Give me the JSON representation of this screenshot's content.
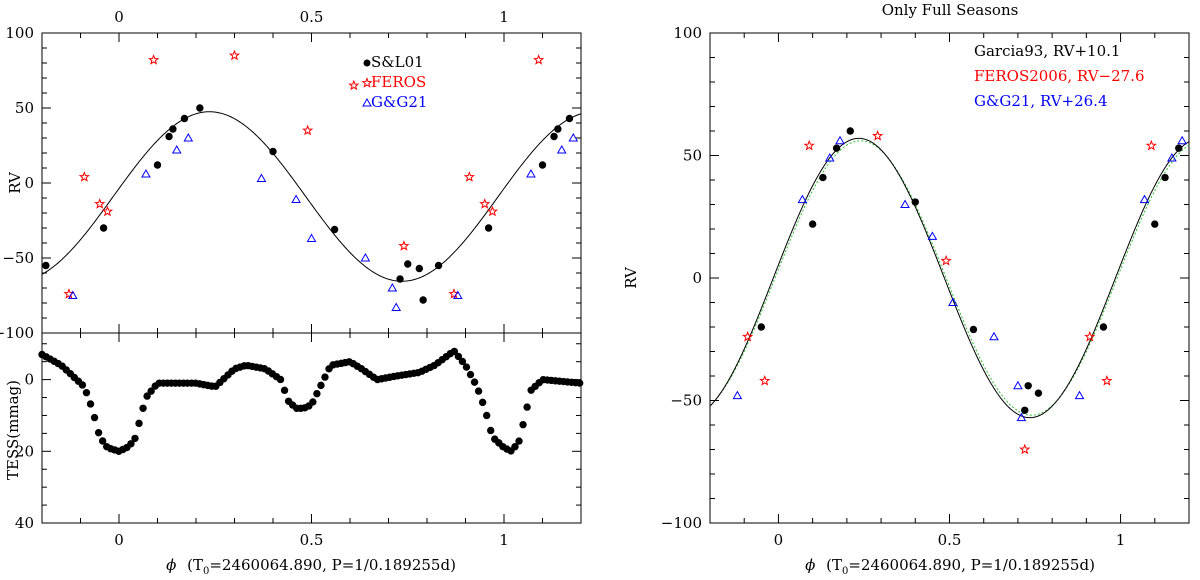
{
  "chart_data": [
    {
      "type": "scatter",
      "panel": "left-top",
      "ylabel": "RV",
      "top_xticks": [
        "0",
        "0.5",
        "1"
      ],
      "xlim": [
        -0.2,
        1.2
      ],
      "ylim": [
        -100,
        100
      ],
      "yticks": [
        100,
        50,
        0,
        -50,
        -100
      ],
      "ytick_labels": [
        "100",
        "50",
        "0",
        "−50",
        "−100"
      ],
      "legend_position": "top-right",
      "legend": [
        {
          "label": "S&L01",
          "color": "#000000",
          "marker": "dot"
        },
        {
          "label": "FEROS",
          "color": "#ff0000",
          "marker": "star"
        },
        {
          "label": "G&G21",
          "color": "#0000ff",
          "marker": "triangle"
        }
      ],
      "fit": {
        "mean": -9,
        "amplitude": 56.5,
        "phase_of_max": 0.235
      },
      "series": [
        {
          "name": "S&L01",
          "color": "#000000",
          "marker": "dot",
          "x": [
            -0.19,
            -0.04,
            0.1,
            0.13,
            0.14,
            0.17,
            0.21,
            0.4,
            0.56,
            0.73,
            0.75,
            0.78,
            0.79,
            0.83,
            0.96,
            1.1,
            1.13,
            1.14,
            1.17
          ],
          "y": [
            -55,
            -30,
            12,
            31,
            36,
            43,
            50,
            21,
            -31,
            -64,
            -54,
            -57,
            -78,
            -55,
            -30,
            12,
            31,
            36,
            43
          ]
        },
        {
          "name": "FEROS",
          "color": "#ff0000",
          "marker": "star",
          "x": [
            -0.13,
            -0.09,
            -0.05,
            -0.03,
            0.09,
            0.3,
            0.49,
            0.61,
            0.74,
            0.87,
            0.91,
            0.95,
            0.97,
            1.09
          ],
          "y": [
            -74,
            4,
            -14,
            -19,
            82,
            85,
            35,
            65,
            -42,
            -74,
            4,
            -14,
            -19,
            82
          ]
        },
        {
          "name": "G&G21",
          "color": "#0000ff",
          "marker": "triangle",
          "x": [
            -0.12,
            0.07,
            0.15,
            0.18,
            0.37,
            0.46,
            0.5,
            0.64,
            0.71,
            0.72,
            0.88,
            1.07,
            1.15,
            1.18
          ],
          "y": [
            -75,
            6,
            22,
            30,
            3,
            -11,
            -37,
            -50,
            -70,
            -83,
            -75,
            6,
            22,
            30
          ]
        }
      ]
    },
    {
      "type": "scatter",
      "panel": "left-bottom",
      "ylabel": "TESS(mmag)",
      "xlabel_prefix": "ϕ",
      "xlabel_main": "(T",
      "xlabel_sub": "0",
      "xlabel_rest": "=2460064.890, P=1/0.189255d)",
      "xlim": [
        -0.2,
        1.2
      ],
      "xticks": [
        "0",
        "0.5",
        "1"
      ],
      "ylim": [
        -13,
        40
      ],
      "yticks": [
        0,
        20,
        40
      ],
      "ytick_labels": [
        "0",
        "20",
        "40"
      ],
      "series": [
        {
          "name": "TESS",
          "color": "#000000",
          "marker": "dot",
          "phase_values_x": [
            -0.2,
            -0.15,
            -0.12,
            -0.09,
            -0.07,
            -0.05,
            -0.03,
            0,
            0.02,
            0.04,
            0.07,
            0.1,
            0.2,
            0.25,
            0.3,
            0.33,
            0.38,
            0.42,
            0.44,
            0.46,
            0.48,
            0.5,
            0.55,
            0.6,
            0.63,
            0.67,
            0.72,
            0.78,
            0.82,
            0.87,
            0.9,
            0.93,
            0.95,
            0.97,
            1,
            1.02,
            1.04,
            1.07,
            1.1,
            1.2
          ],
          "phase_values_y": [
            -7,
            -4,
            -1,
            2,
            8,
            16,
            19,
            20,
            19,
            17,
            5,
            1,
            1,
            2,
            -3,
            -4,
            -3,
            0,
            6,
            8,
            8,
            7,
            -4,
            -5,
            -3,
            0,
            -1,
            -2,
            -4,
            -8,
            -4,
            2,
            8,
            16,
            19,
            20,
            17,
            3,
            0,
            1
          ]
        }
      ]
    },
    {
      "type": "scatter",
      "panel": "right",
      "title": "Only Full Seasons",
      "ylabel": "RV",
      "xlabel_prefix": "ϕ",
      "xlabel_main": "(T",
      "xlabel_sub": "0",
      "xlabel_rest": "=2460064.890, P=1/0.189255d)",
      "xlim": [
        -0.2,
        1.2
      ],
      "xticks": [
        "0",
        "0.5",
        "1"
      ],
      "ylim": [
        -100,
        100
      ],
      "yticks": [
        100,
        50,
        0,
        -50,
        -100
      ],
      "ytick_labels": [
        "100",
        "50",
        "0",
        "−50",
        "−100"
      ],
      "legend_position": "top-right",
      "legend": [
        {
          "label": "Garcia93, RV+10.1",
          "color": "#000000"
        },
        {
          "label": "FEROS2006, RV−27.6",
          "color": "#ff0000"
        },
        {
          "label": "G&G21, RV+26.4",
          "color": "#0000ff"
        }
      ],
      "fit": {
        "mean": 0,
        "amplitude": 57,
        "phase_of_max": 0.235
      },
      "alt_fit": {
        "mean": 0,
        "amplitude": 56,
        "phase_of_max": 0.24,
        "style": "dotted",
        "color": "#33bb33"
      },
      "series": [
        {
          "name": "Garcia93",
          "color": "#000000",
          "marker": "dot",
          "x": [
            -0.05,
            0.1,
            0.13,
            0.17,
            0.21,
            0.4,
            0.57,
            0.72,
            0.73,
            0.76,
            0.95,
            1.1,
            1.13,
            1.17
          ],
          "y": [
            -20,
            22,
            41,
            53,
            60,
            31,
            -21,
            -54,
            -44,
            -47,
            -20,
            22,
            41,
            53
          ]
        },
        {
          "name": "FEROS2006",
          "color": "#ff0000",
          "marker": "star",
          "x": [
            -0.09,
            -0.04,
            0.09,
            0.29,
            0.49,
            0.72,
            0.91,
            0.96,
            1.09
          ],
          "y": [
            -24,
            -42,
            54,
            58,
            7,
            -70,
            -24,
            -42,
            54
          ]
        },
        {
          "name": "G&G21",
          "color": "#0000ff",
          "marker": "triangle",
          "x": [
            -0.12,
            0.07,
            0.15,
            0.18,
            0.37,
            0.45,
            0.51,
            0.63,
            0.7,
            0.71,
            0.88,
            1.07,
            1.15,
            1.18
          ],
          "y": [
            -48,
            32,
            49,
            56,
            30,
            17,
            -10,
            -24,
            -44,
            -57,
            -48,
            32,
            49,
            56
          ]
        }
      ]
    }
  ]
}
